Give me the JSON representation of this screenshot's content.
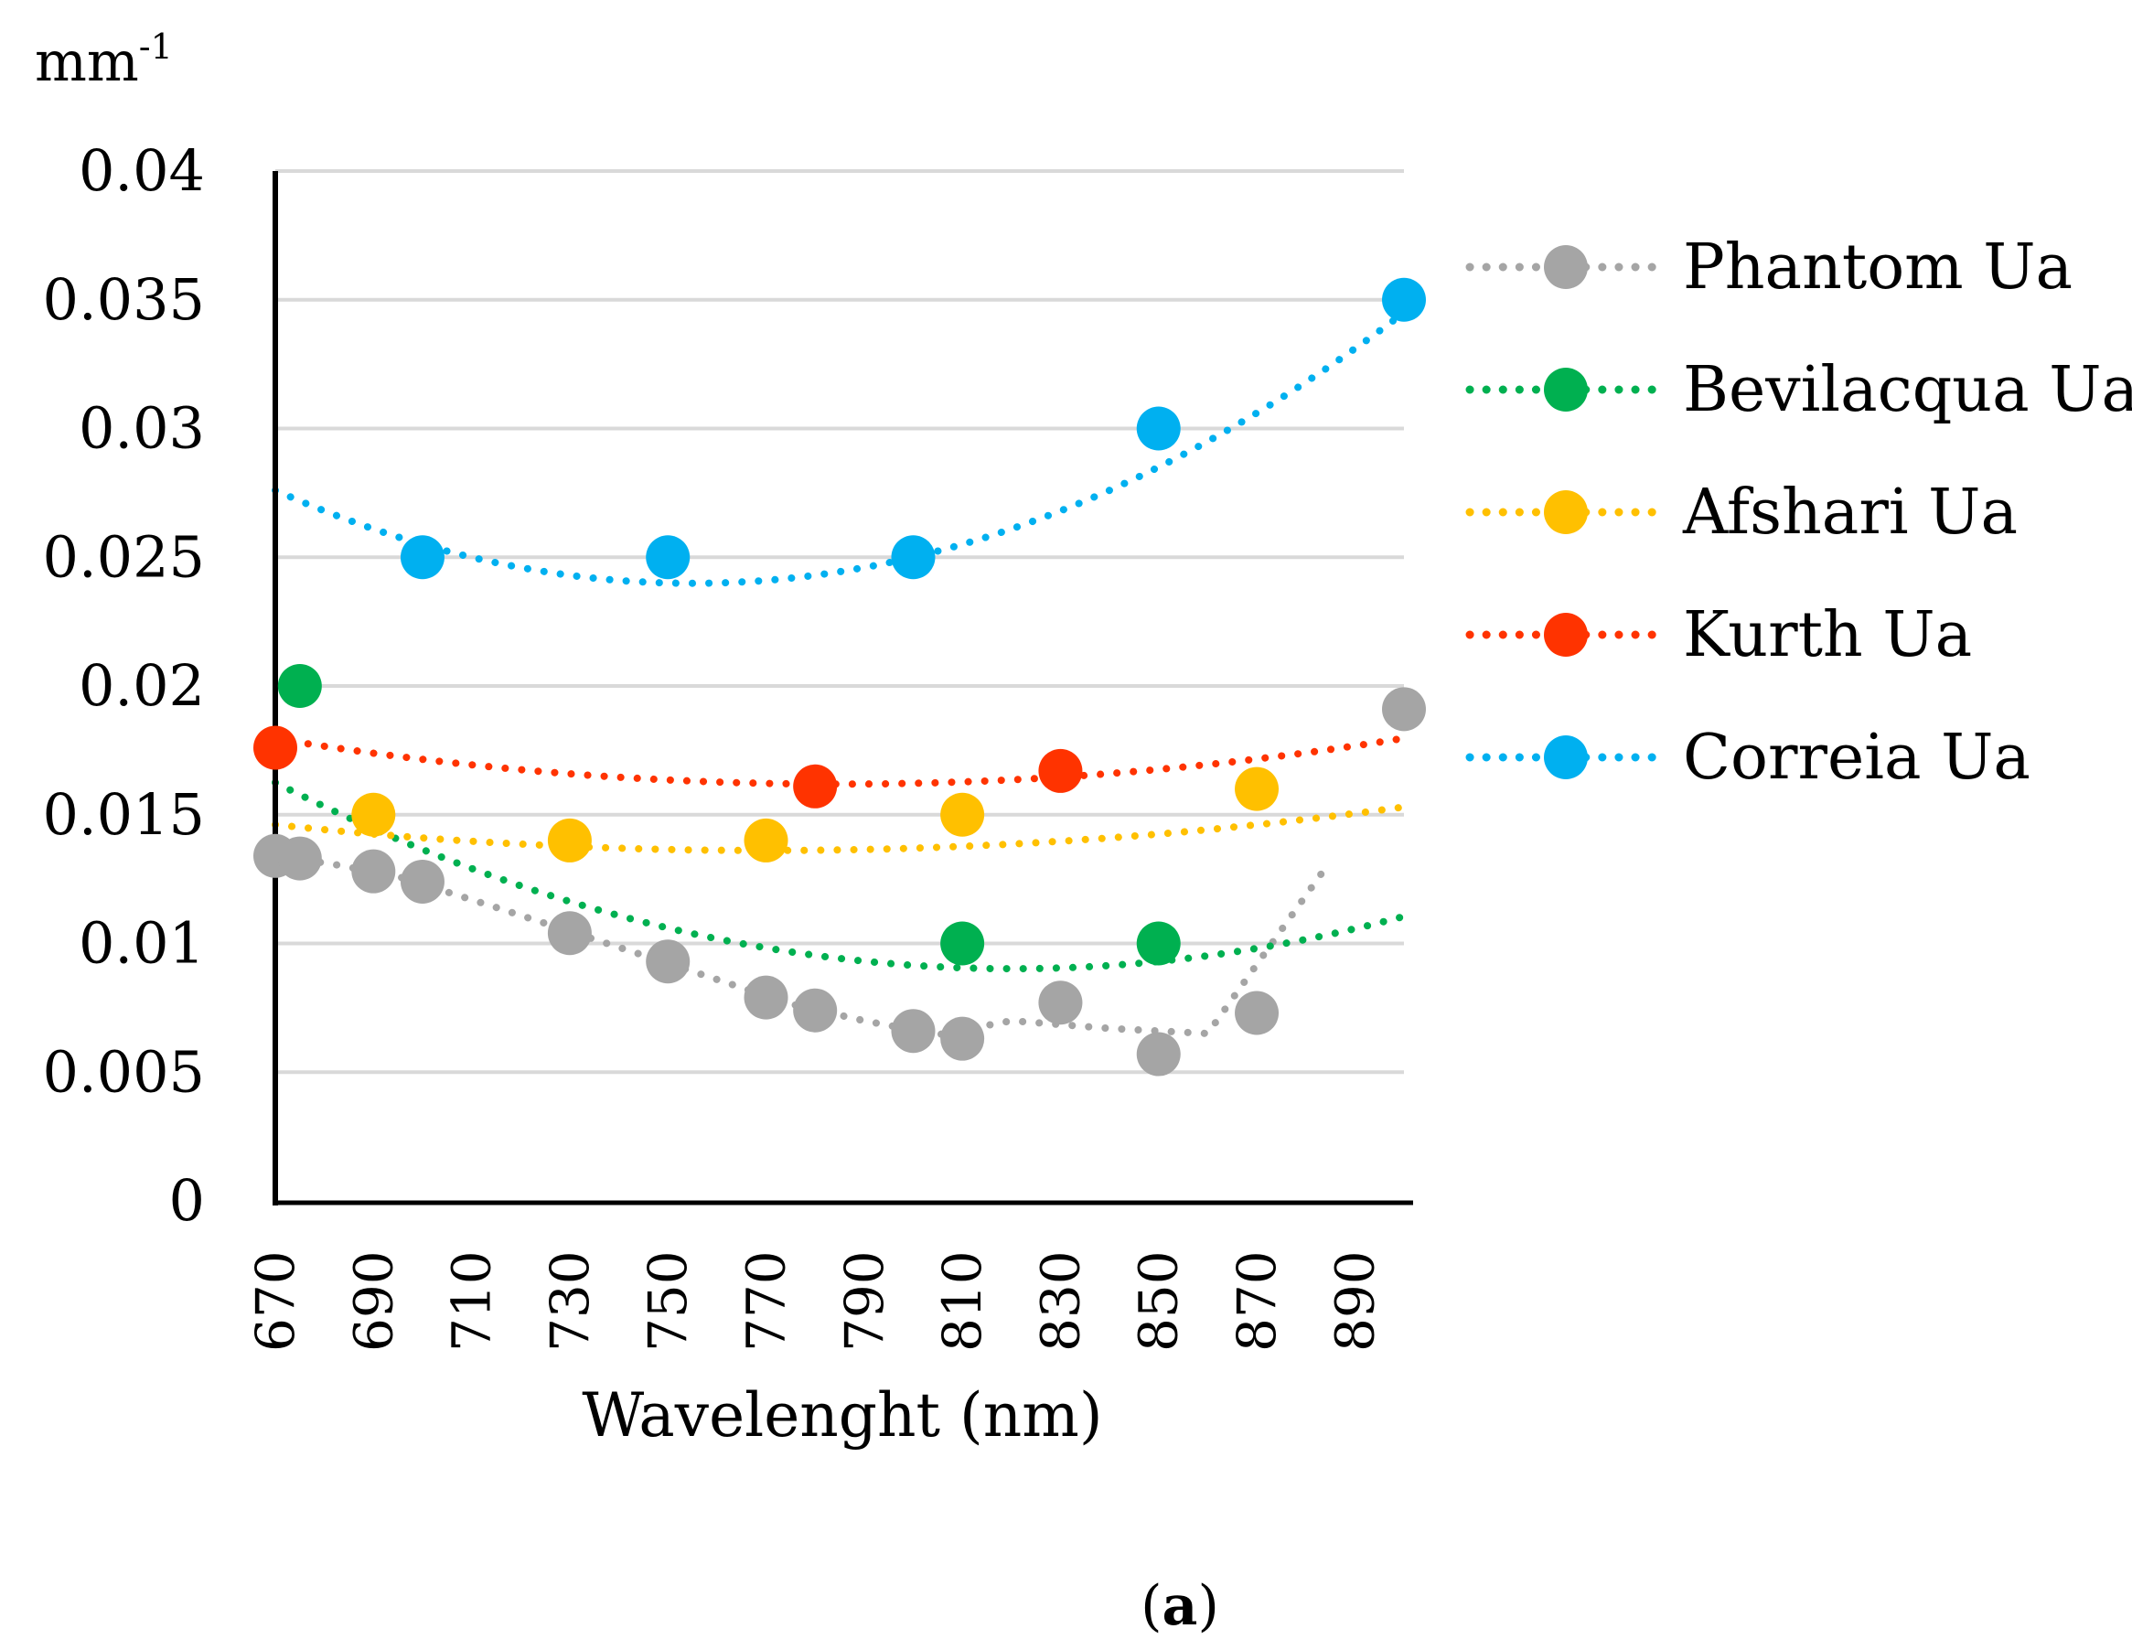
{
  "chart_data": {
    "type": "scatter",
    "ylabel": "mm-1",
    "ylabel_main": "mm",
    "ylabel_sup": "-1",
    "xlabel": "Wavelenght (nm)",
    "panel_label": "a",
    "panel_open": "(",
    "panel_close": ")",
    "xlim": [
      670,
      900
    ],
    "ylim": [
      0,
      0.04
    ],
    "x_ticks": [
      "670",
      "690",
      "710",
      "730",
      "750",
      "770",
      "790",
      "810",
      "830",
      "850",
      "870",
      "890"
    ],
    "y_ticks": [
      "0",
      "0.005",
      "0.01",
      "0.015",
      "0.02",
      "0.025",
      "0.03",
      "0.035",
      "0.04"
    ],
    "gridlines": "horizontal",
    "legend_position": "right",
    "series": [
      {
        "name": "Phantom Ua",
        "color": "#A5A5A5",
        "trendline": "moving-average",
        "points": [
          [
            670,
            0.0134
          ],
          [
            675,
            0.0133
          ],
          [
            690,
            0.0128
          ],
          [
            700,
            0.0124
          ],
          [
            730,
            0.0104
          ],
          [
            750,
            0.0093
          ],
          [
            770,
            0.0079
          ],
          [
            780,
            0.0074
          ],
          [
            800,
            0.0066
          ],
          [
            810,
            0.0063
          ],
          [
            830,
            0.0077
          ],
          [
            850,
            0.0057
          ],
          [
            870,
            0.0073
          ],
          [
            900,
            0.0191
          ]
        ]
      },
      {
        "name": "Bevilacqua Ua",
        "color": "#00B050",
        "trendline": "polynomial",
        "coef": [
          3.2e-07,
          -0.000525,
          0.22435
        ],
        "points": [
          [
            675,
            0.02
          ],
          [
            810,
            0.01
          ],
          [
            850,
            0.01
          ]
        ]
      },
      {
        "name": "Afshari Ua",
        "color": "#FFC000",
        "trendline": "polynomial",
        "coef": [
          1e-07,
          -0.000154,
          0.0729
        ],
        "points": [
          [
            690,
            0.015
          ],
          [
            730,
            0.014
          ],
          [
            770,
            0.014
          ],
          [
            810,
            0.015
          ],
          [
            870,
            0.016
          ]
        ]
      },
      {
        "name": "Kurth Ua",
        "color": "#FF3300",
        "trendline": "polynomial",
        "coef": [
          1.34e-07,
          -0.0002103,
          0.0987
        ],
        "points": [
          [
            670,
            0.0176
          ],
          [
            780,
            0.0161
          ],
          [
            830,
            0.0167
          ]
        ]
      },
      {
        "name": "Correia Ua",
        "color": "#00B0F0",
        "trendline": "polynomial",
        "coef": [
          5e-07,
          -0.000755,
          0.309
        ],
        "points": [
          [
            700,
            0.025
          ],
          [
            750,
            0.025
          ],
          [
            800,
            0.025
          ],
          [
            850,
            0.03
          ],
          [
            900,
            0.035
          ]
        ]
      }
    ]
  }
}
